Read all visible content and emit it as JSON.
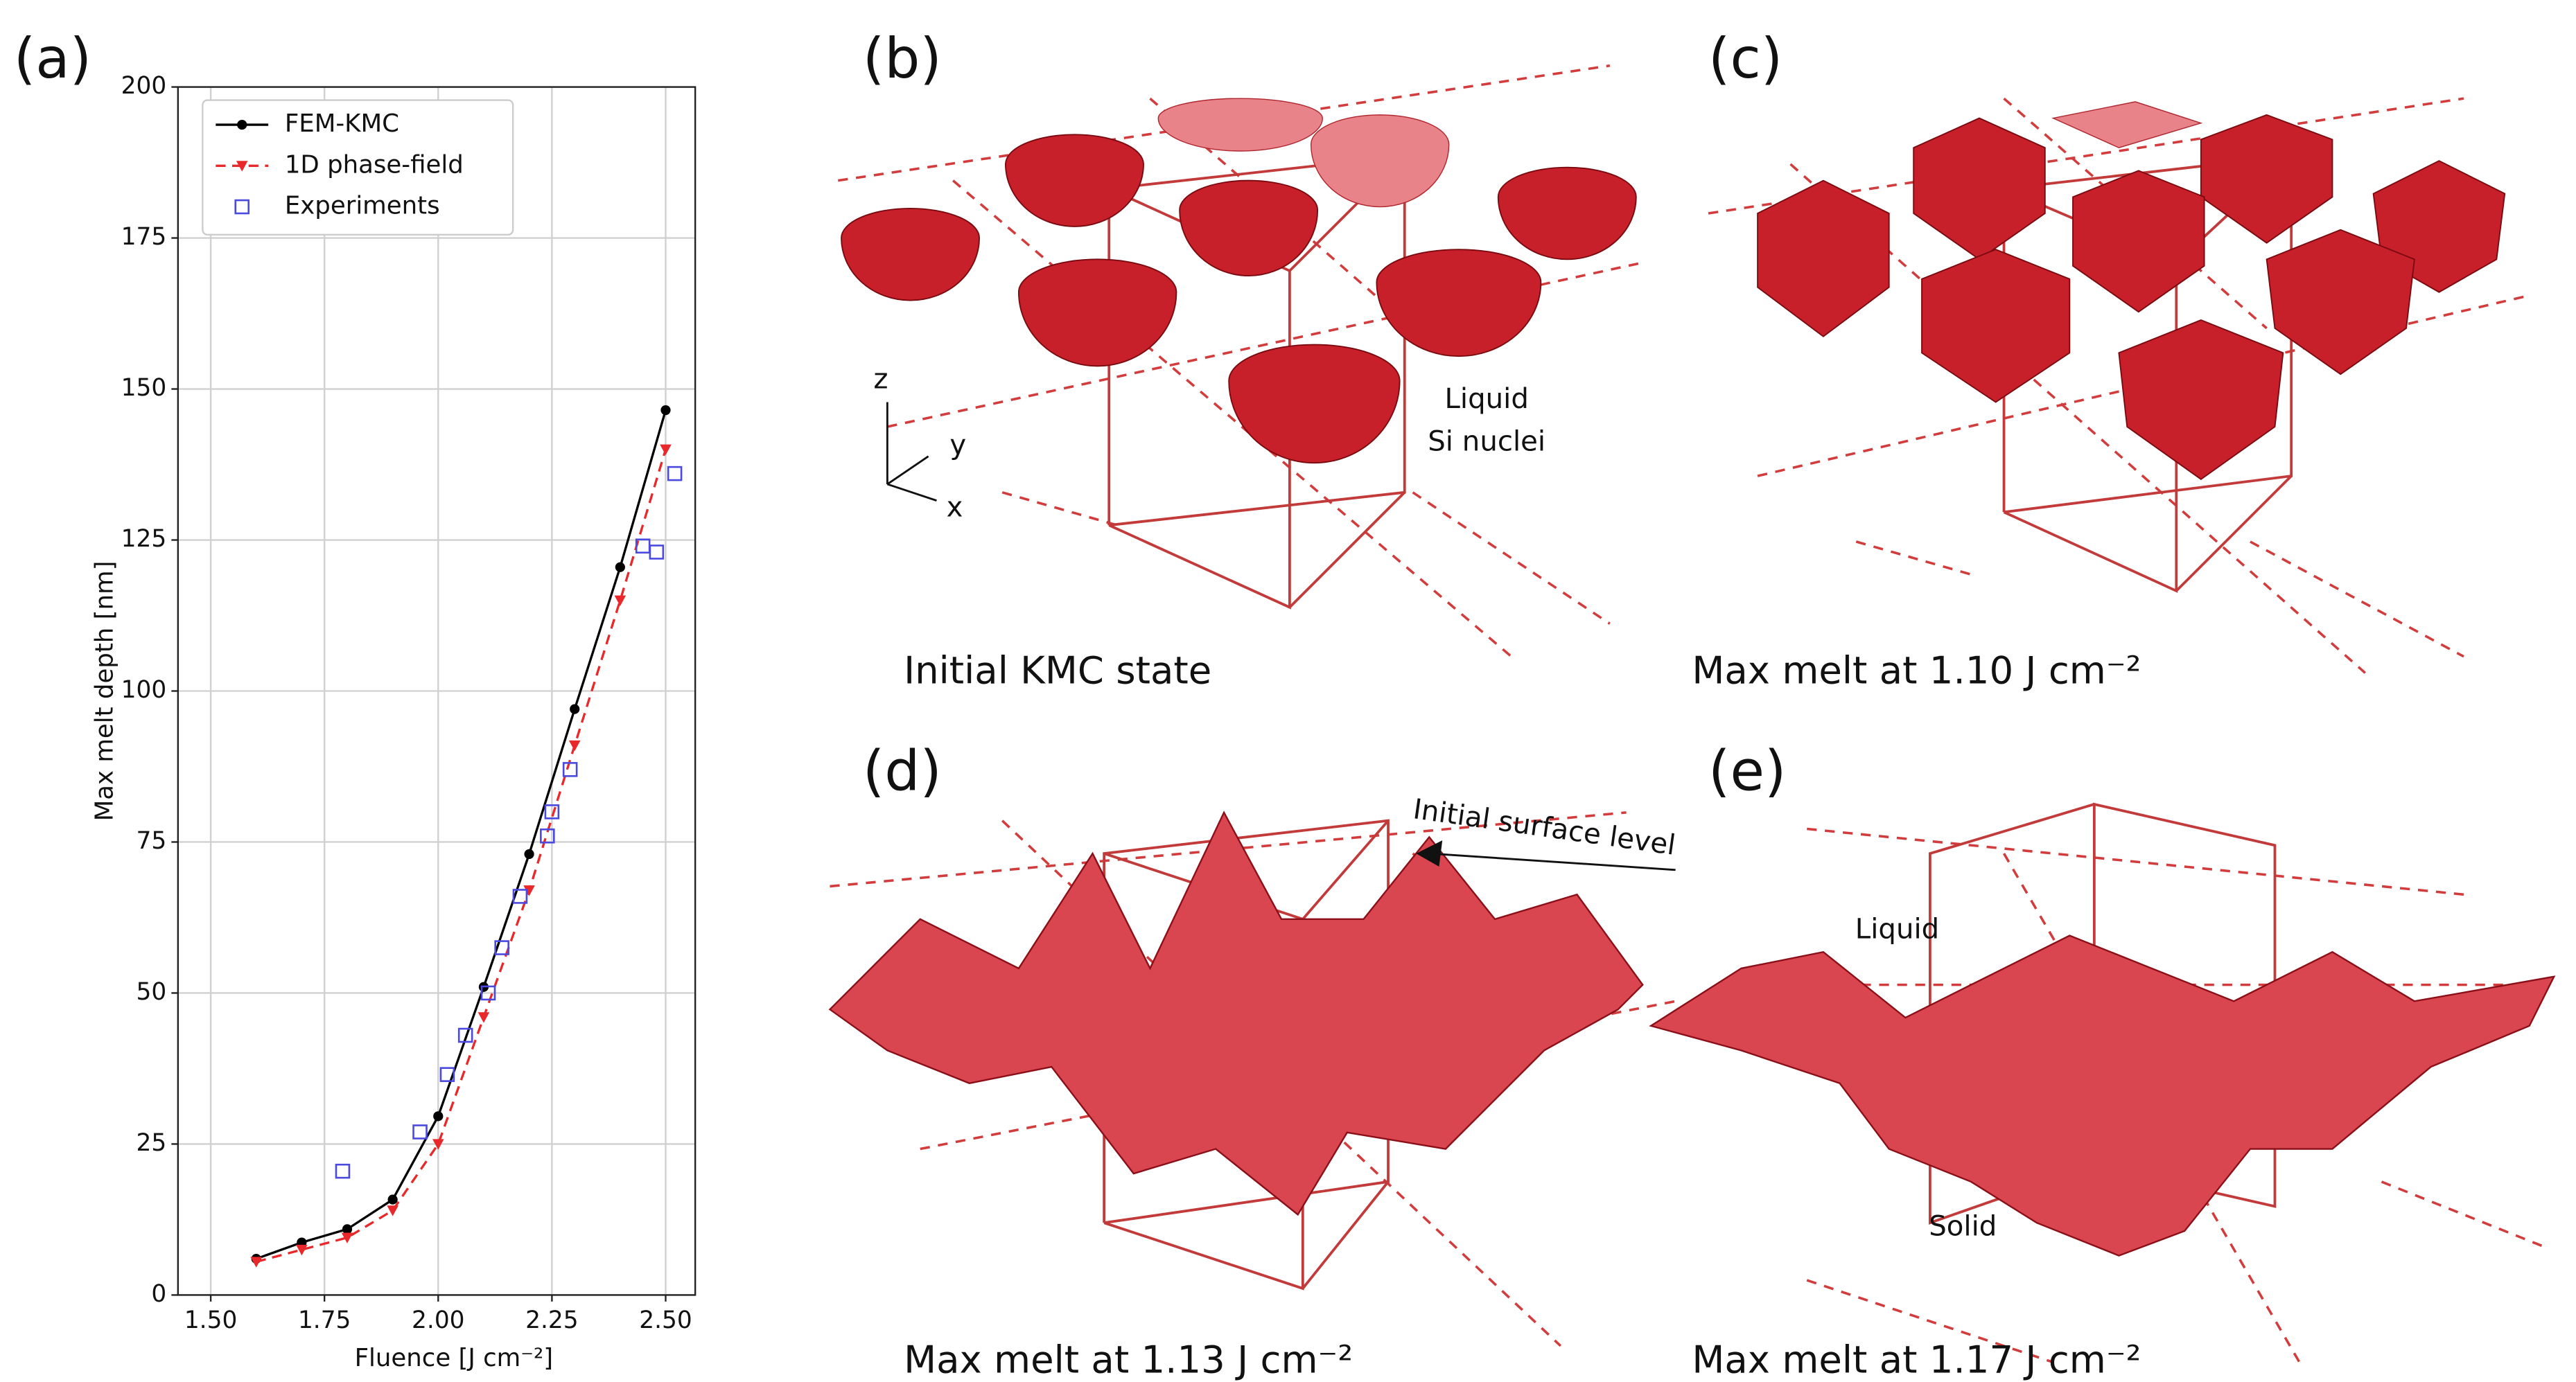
{
  "chart_data": {
    "type": "line",
    "panel_label": "(a)",
    "xlabel": "Fluence [J cm⁻²]",
    "ylabel": "Max melt depth [nm]",
    "xlim": [
      1.428,
      2.565
    ],
    "ylim": [
      0,
      200
    ],
    "xticks": [
      {
        "value": 1.5,
        "label": "1.50"
      },
      {
        "value": 1.75,
        "label": "1.75"
      },
      {
        "value": 2.0,
        "label": "2.00"
      },
      {
        "value": 2.25,
        "label": "2.25"
      },
      {
        "value": 2.5,
        "label": "2.50"
      }
    ],
    "yticks": [
      0,
      25,
      50,
      75,
      100,
      125,
      150,
      175,
      200
    ],
    "grid": true,
    "legend": "upper left",
    "series": [
      {
        "name": "FEM-KMC",
        "color": "#000000",
        "line_style": "solid",
        "marker": "circle",
        "x": [
          1.6,
          1.7,
          1.8,
          1.9,
          2.0,
          2.1,
          2.2,
          2.3,
          2.4,
          2.5
        ],
        "values": [
          6,
          8.7,
          10.9,
          15.8,
          29.6,
          51,
          73,
          97,
          120.5,
          146.5
        ]
      },
      {
        "name": "1D phase-field",
        "color": "#e8282a",
        "line_style": "dashed",
        "marker": "triangle",
        "x": [
          1.6,
          1.7,
          1.8,
          1.9,
          2.0,
          2.1,
          2.2,
          2.3,
          2.4,
          2.5
        ],
        "values": [
          5.5,
          7.5,
          9.5,
          14,
          25,
          46,
          67,
          91,
          115,
          140
        ]
      },
      {
        "name": "Experiments",
        "color": "#4a4ae0",
        "line_style": "none",
        "marker": "square",
        "x": [
          1.79,
          1.96,
          2.02,
          2.06,
          2.11,
          2.14,
          2.18,
          2.24,
          2.25,
          2.29,
          2.45,
          2.48,
          2.52
        ],
        "values": [
          20.5,
          27,
          36.5,
          43,
          50,
          57.5,
          66,
          76,
          80,
          87,
          124,
          123,
          136
        ]
      }
    ]
  },
  "panels": {
    "b": {
      "label": "(b)",
      "caption": "Initial KMC state",
      "note_1": "Liquid",
      "note_2": "Si nuclei",
      "axis_z": "z",
      "axis_y": "y",
      "axis_x": "x"
    },
    "c": {
      "label": "(c)",
      "caption": "Max melt at 1.10 J cm⁻²"
    },
    "d": {
      "label": "(d)",
      "caption": "Max melt at 1.13 J cm⁻²",
      "note": "Initial surface level"
    },
    "e": {
      "label": "(e)",
      "caption": "Max melt at 1.17 J cm⁻²",
      "note_1": "Liquid",
      "note_2": "Solid"
    }
  }
}
